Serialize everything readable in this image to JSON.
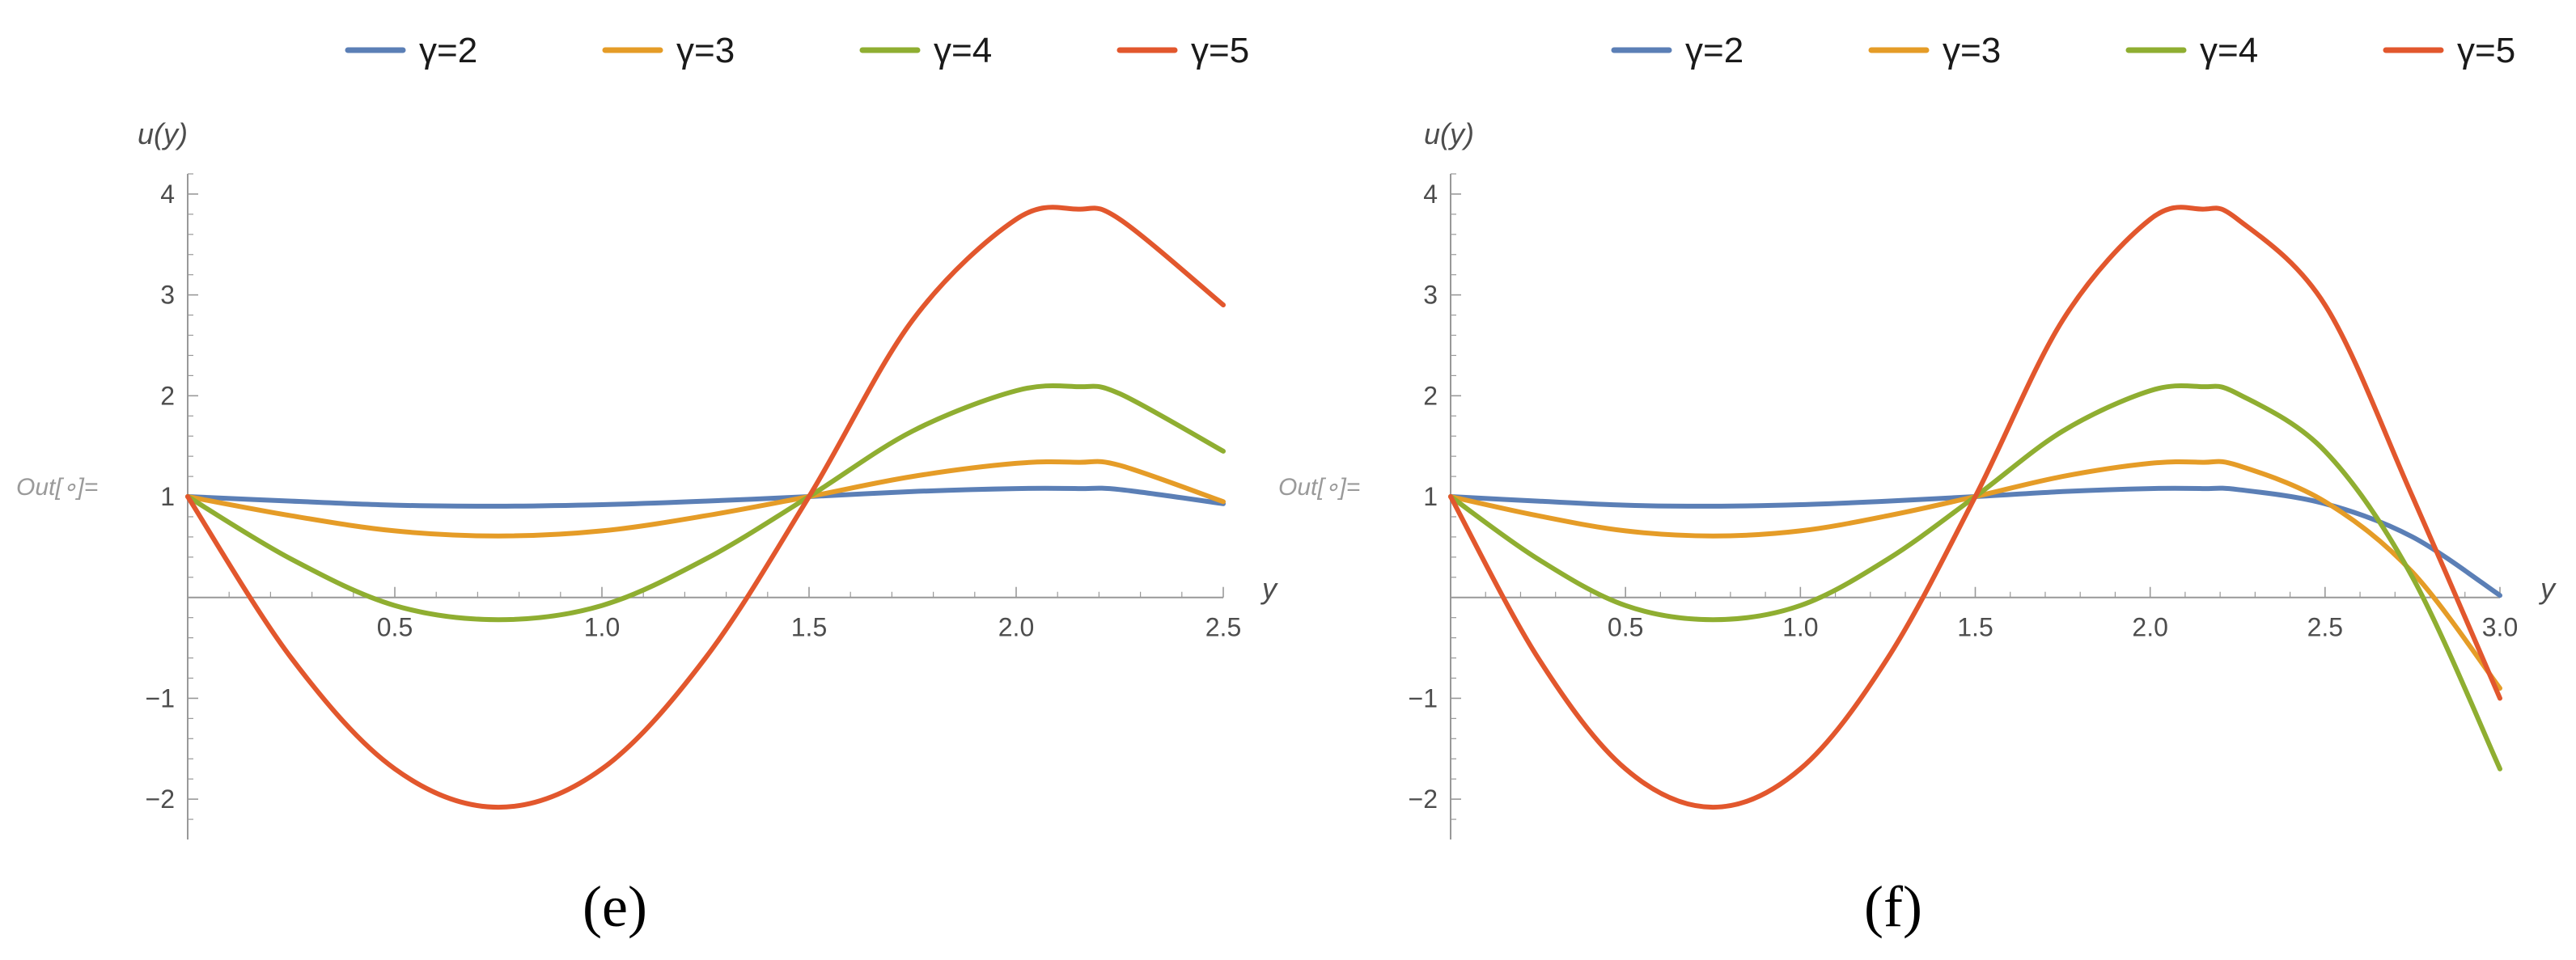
{
  "colors": {
    "gamma2": "#5b7fb6",
    "gamma3": "#e59c27",
    "gamma4": "#8fae31",
    "gamma5": "#e2572d",
    "axis": "#999999",
    "text": "#4d4d4d"
  },
  "chart_data": [
    {
      "type": "line",
      "panel_label": "(e)",
      "out_label": "Out[∘]=",
      "xlabel": "y",
      "ylabel": "u(y)",
      "xlim": [
        0,
        2.5
      ],
      "ylim": [
        -2.4,
        4.2
      ],
      "xticks": [
        0.5,
        1.0,
        1.5,
        2.0,
        2.5
      ],
      "xtick_labels": [
        "0.5",
        "1.0",
        "1.5",
        "2.0",
        "2.5"
      ],
      "yticks": [
        -2,
        -1,
        1,
        2,
        3,
        4
      ],
      "ytick_labels": [
        "−2",
        "−1",
        "1",
        "2",
        "3",
        "4"
      ],
      "legend_position": "top-center",
      "x": [
        0,
        0.25,
        0.5,
        0.75,
        1.0,
        1.25,
        1.5,
        1.75,
        2.0,
        2.15,
        2.25,
        2.5
      ],
      "series": [
        {
          "name": "γ=2",
          "color_key": "gamma2",
          "values": [
            1.0,
            0.955,
            0.915,
            0.905,
            0.92,
            0.955,
            1.0,
            1.05,
            1.08,
            1.08,
            1.07,
            0.93
          ]
        },
        {
          "name": "γ=3",
          "color_key": "gamma3",
          "values": [
            1.0,
            0.81,
            0.66,
            0.61,
            0.66,
            0.81,
            1.0,
            1.2,
            1.33,
            1.34,
            1.31,
            0.95
          ]
        },
        {
          "name": "γ=4",
          "color_key": "gamma4",
          "values": [
            1.0,
            0.38,
            -0.08,
            -0.22,
            -0.08,
            0.38,
            1.0,
            1.65,
            2.05,
            2.09,
            2.02,
            1.45
          ]
        },
        {
          "name": "γ=5",
          "color_key": "gamma5",
          "values": [
            1.0,
            -0.6,
            -1.7,
            -2.08,
            -1.7,
            -0.6,
            1.0,
            2.75,
            3.75,
            3.85,
            3.75,
            2.9
          ]
        }
      ]
    },
    {
      "type": "line",
      "panel_label": "(f)",
      "out_label": "Out[∘]=",
      "xlabel": "y",
      "ylabel": "u(y)",
      "xlim": [
        0,
        3.0
      ],
      "ylim": [
        -2.4,
        4.2
      ],
      "xticks": [
        0.5,
        1.0,
        1.5,
        2.0,
        2.5,
        3.0
      ],
      "xtick_labels": [
        "0.5",
        "1.0",
        "1.5",
        "2.0",
        "2.5",
        "3.0"
      ],
      "yticks": [
        -2,
        -1,
        1,
        2,
        3,
        4
      ],
      "ytick_labels": [
        "−2",
        "−1",
        "1",
        "2",
        "3",
        "4"
      ],
      "legend_position": "top-center",
      "x": [
        0,
        0.25,
        0.5,
        0.75,
        1.0,
        1.25,
        1.5,
        1.75,
        2.0,
        2.15,
        2.25,
        2.5,
        2.75,
        3.0
      ],
      "series": [
        {
          "name": "γ=2",
          "color_key": "gamma2",
          "values": [
            1.0,
            0.955,
            0.915,
            0.905,
            0.92,
            0.955,
            1.0,
            1.05,
            1.08,
            1.08,
            1.07,
            0.93,
            0.6,
            0.02
          ]
        },
        {
          "name": "γ=3",
          "color_key": "gamma3",
          "values": [
            1.0,
            0.81,
            0.66,
            0.61,
            0.66,
            0.81,
            1.0,
            1.2,
            1.33,
            1.34,
            1.31,
            0.95,
            0.25,
            -0.9
          ]
        },
        {
          "name": "γ=4",
          "color_key": "gamma4",
          "values": [
            1.0,
            0.38,
            -0.08,
            -0.22,
            -0.08,
            0.38,
            1.0,
            1.65,
            2.05,
            2.09,
            2.02,
            1.45,
            0.2,
            -1.7
          ]
        },
        {
          "name": "γ=5",
          "color_key": "gamma5",
          "values": [
            1.0,
            -0.6,
            -1.7,
            -2.08,
            -1.7,
            -0.6,
            1.0,
            2.75,
            3.75,
            3.85,
            3.75,
            2.9,
            1.0,
            -1.0
          ]
        }
      ]
    }
  ]
}
